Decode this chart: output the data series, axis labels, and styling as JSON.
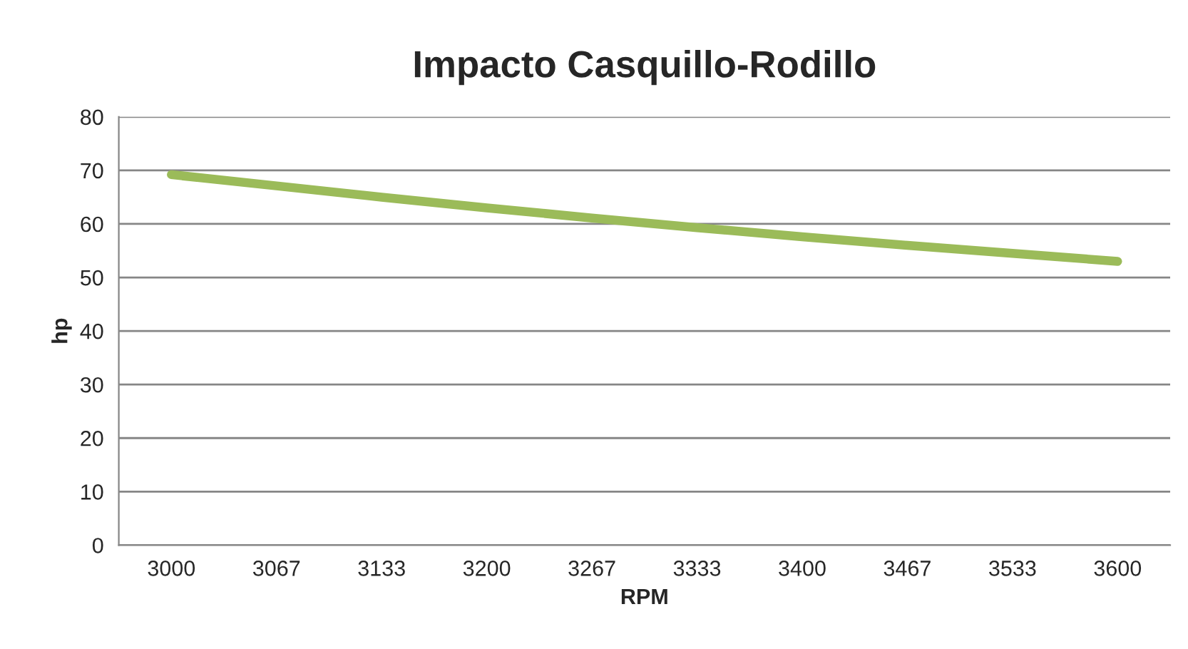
{
  "chart_data": {
    "type": "line",
    "title": "Impacto Casquillo-Rodillo",
    "xlabel": "RPM",
    "ylabel": "hp",
    "categories": [
      "3000",
      "3067",
      "3133",
      "3200",
      "3267",
      "3333",
      "3400",
      "3467",
      "3533",
      "3600"
    ],
    "series": [
      {
        "color": "#9bbb59",
        "values": [
          69.2,
          67.1,
          65.0,
          63.0,
          61.1,
          59.3,
          57.6,
          56.0,
          54.5,
          53.0
        ]
      }
    ],
    "ylim": [
      0,
      80
    ],
    "yticks": [
      0,
      10,
      20,
      30,
      40,
      50,
      60,
      70,
      80
    ],
    "grid": "y",
    "marker": "none",
    "line_style": "solid"
  }
}
